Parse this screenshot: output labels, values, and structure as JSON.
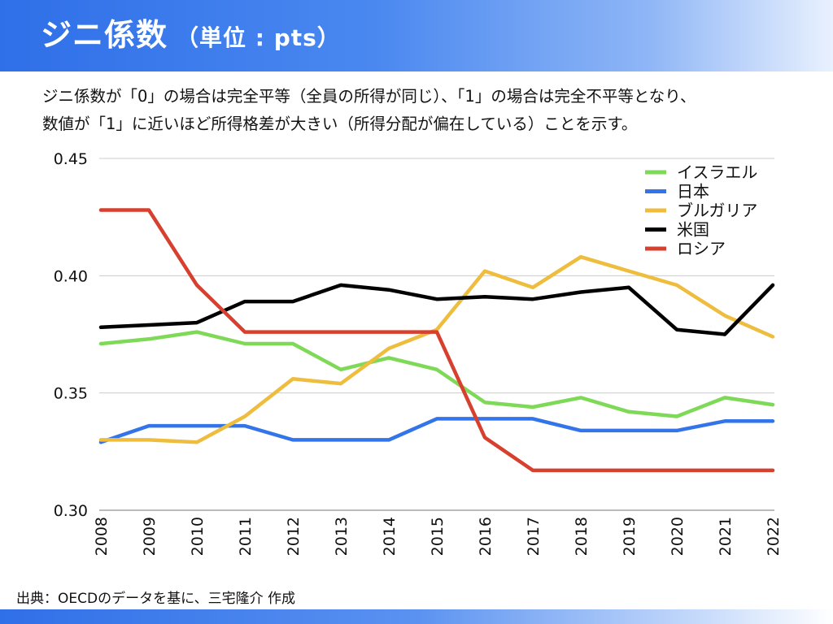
{
  "header": {
    "title": "ジニ係数",
    "unit": "（単位 : pts）"
  },
  "description": {
    "line1": "ジニ係数が「0」の場合は完全平等（全員の所得が同じ）、「1」の場合は完全不平等となり、",
    "line2": "数値が「1」に近いほど所得格差が大きい（所得分配が偏在している）ことを示す。"
  },
  "source": "出典：OECDのデータを基に、三宅隆介 作成",
  "chart_data": {
    "type": "line",
    "title": "ジニ係数（単位 : pts）",
    "xlabel": "",
    "ylabel": "",
    "x": [
      "2008",
      "2009",
      "2010",
      "2011",
      "2012",
      "2013",
      "2014",
      "2015",
      "2016",
      "2017",
      "2018",
      "2019",
      "2020",
      "2021",
      "2022"
    ],
    "ylim": [
      0.3,
      0.45
    ],
    "yticks": [
      "0.30",
      "0.35",
      "0.40",
      "0.45"
    ],
    "grid": true,
    "legend_position": "top-right",
    "series": [
      {
        "name": "イスラエル",
        "color": "#7ed957",
        "values": [
          0.371,
          0.373,
          0.376,
          0.371,
          0.371,
          0.36,
          0.365,
          0.36,
          0.346,
          0.344,
          0.348,
          0.342,
          0.34,
          0.348,
          0.345
        ]
      },
      {
        "name": "日本",
        "color": "#3375e8",
        "values": [
          0.329,
          0.336,
          0.336,
          0.336,
          0.33,
          0.33,
          0.33,
          0.339,
          0.339,
          0.339,
          0.334,
          0.334,
          0.334,
          0.338,
          0.338
        ]
      },
      {
        "name": "ブルガリア",
        "color": "#efbd3e",
        "values": [
          0.33,
          0.33,
          0.329,
          0.34,
          0.356,
          0.354,
          0.369,
          0.377,
          0.402,
          0.395,
          0.408,
          0.402,
          0.396,
          0.383,
          0.374
        ]
      },
      {
        "name": "米国",
        "color": "#000000",
        "values": [
          0.378,
          0.379,
          0.38,
          0.389,
          0.389,
          0.396,
          0.394,
          0.39,
          0.391,
          0.39,
          0.393,
          0.395,
          0.377,
          0.375,
          0.396
        ]
      },
      {
        "name": "ロシア",
        "color": "#d7402f",
        "values": [
          0.428,
          0.428,
          0.396,
          0.376,
          0.376,
          0.376,
          0.376,
          0.376,
          0.331,
          0.317,
          0.317,
          0.317,
          0.317,
          0.317,
          0.317
        ]
      }
    ]
  }
}
